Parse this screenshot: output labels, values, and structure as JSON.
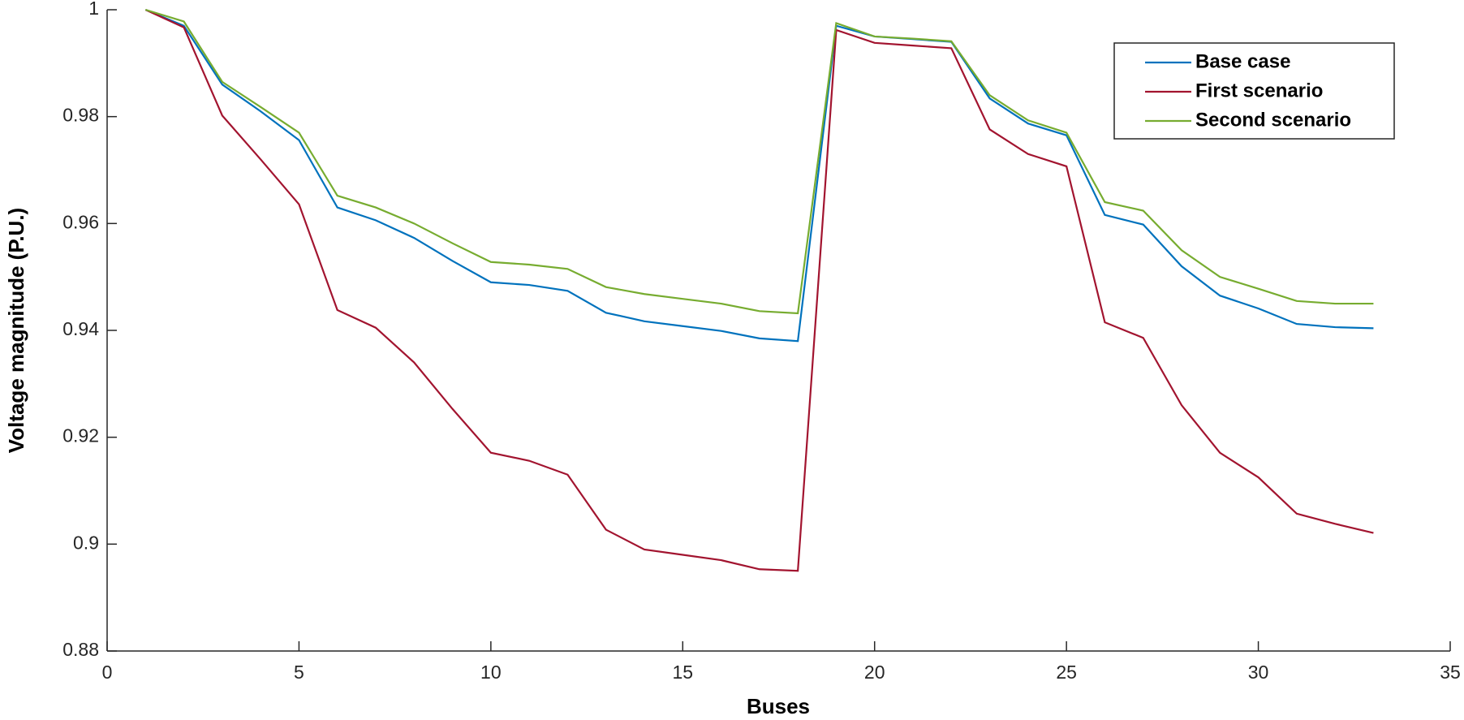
{
  "chart_data": {
    "type": "line",
    "x_label": "Buses",
    "y_label": "Voltage magnitude (P.U.)",
    "x": [
      1,
      2,
      3,
      4,
      5,
      6,
      7,
      8,
      9,
      10,
      11,
      12,
      13,
      14,
      15,
      16,
      17,
      18,
      19,
      20,
      21,
      22,
      23,
      24,
      25,
      26,
      27,
      28,
      29,
      30,
      31,
      32,
      33
    ],
    "series": [
      {
        "name": "Base case",
        "color": "#0072bd",
        "values": [
          1.0,
          0.997,
          0.986,
          0.981,
          0.9756,
          0.963,
          0.9606,
          0.9573,
          0.953,
          0.949,
          0.9485,
          0.9474,
          0.9433,
          0.9417,
          0.9408,
          0.9399,
          0.9385,
          0.938,
          0.997,
          0.995,
          0.9945,
          0.994,
          0.9834,
          0.9787,
          0.9765,
          0.9616,
          0.9598,
          0.952,
          0.9465,
          0.9441,
          0.9412,
          0.9406,
          0.9404
        ]
      },
      {
        "name": "First scenario",
        "color": "#a2142f",
        "values": [
          1.0,
          0.9967,
          0.9802,
          0.972,
          0.9636,
          0.9438,
          0.9405,
          0.934,
          0.9253,
          0.9171,
          0.9156,
          0.913,
          0.9027,
          0.899,
          0.898,
          0.897,
          0.8953,
          0.895,
          0.9962,
          0.9938,
          0.9933,
          0.9928,
          0.9776,
          0.973,
          0.9707,
          0.9415,
          0.9386,
          0.926,
          0.9171,
          0.9125,
          0.9057,
          0.9038,
          0.9021
        ]
      },
      {
        "name": "Second scenario",
        "color": "#77ac30",
        "values": [
          1.0,
          0.9978,
          0.9865,
          0.9818,
          0.977,
          0.9652,
          0.963,
          0.96,
          0.9563,
          0.9528,
          0.9523,
          0.9515,
          0.9481,
          0.9468,
          0.9459,
          0.945,
          0.9436,
          0.9432,
          0.9975,
          0.995,
          0.9946,
          0.9941,
          0.984,
          0.9793,
          0.977,
          0.964,
          0.9624,
          0.955,
          0.95,
          0.9478,
          0.9455,
          0.945,
          0.945
        ]
      }
    ],
    "xlim": [
      0,
      35
    ],
    "xticks": [
      0,
      5,
      10,
      15,
      20,
      25,
      30,
      35
    ],
    "ylim": [
      0.88,
      1
    ],
    "yticks": [
      0.88,
      0.9,
      0.92,
      0.94,
      0.96,
      0.98,
      1
    ],
    "legend": "northeast"
  }
}
